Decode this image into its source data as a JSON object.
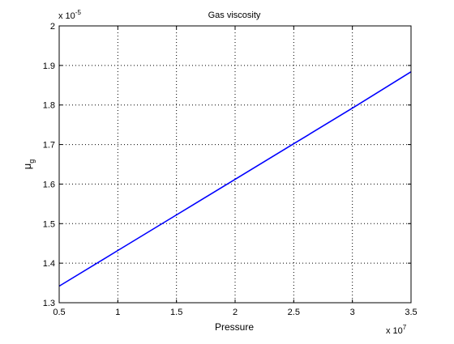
{
  "chart_data": {
    "type": "line",
    "title": "Gas viscosity",
    "xlabel": "Pressure",
    "ylabel": "μ",
    "ylabel_subscript": "g",
    "x_exponent_prefix": "x 10",
    "x_exponent_power": "7",
    "y_exponent_prefix": "x 10",
    "y_exponent_power": "-5",
    "xlim": [
      0.5,
      3.5
    ],
    "ylim": [
      1.3,
      2.0
    ],
    "x_scale_factor": 10000000,
    "y_scale_factor": 1e-05,
    "xticks": [
      0.5,
      1,
      1.5,
      2,
      2.5,
      3,
      3.5
    ],
    "xtick_labels": [
      "0.5",
      "1",
      "1.5",
      "2",
      "2.5",
      "3",
      "3.5"
    ],
    "yticks": [
      1.3,
      1.4,
      1.5,
      1.6,
      1.7,
      1.8,
      1.9,
      2.0
    ],
    "ytick_labels": [
      "1.3",
      "1.4",
      "1.5",
      "1.6",
      "1.7",
      "1.8",
      "1.9",
      "2"
    ],
    "grid": true,
    "grid_style": "dotted",
    "series": [
      {
        "color": "#0000ff",
        "x": [
          0.5,
          1.0,
          1.5,
          2.0,
          2.5,
          3.0,
          3.5
        ],
        "y": [
          1.342,
          1.432,
          1.522,
          1.612,
          1.702,
          1.792,
          1.884
        ]
      }
    ]
  }
}
